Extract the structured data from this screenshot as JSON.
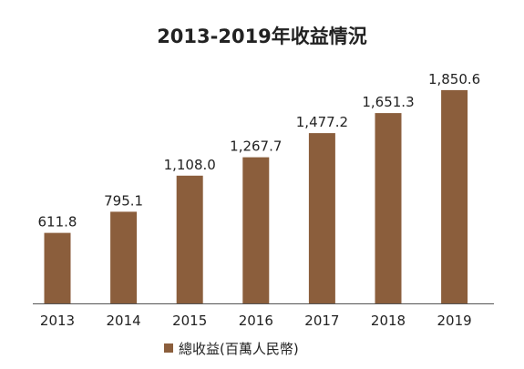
{
  "chart_data": {
    "type": "bar",
    "title": "2013-2019年收益情況",
    "categories": [
      "2013",
      "2014",
      "2015",
      "2016",
      "2017",
      "2018",
      "2019"
    ],
    "series": [
      {
        "name": "總收益(百萬人民幣)",
        "values": [
          611.8,
          795.1,
          1108.0,
          1267.7,
          1477.2,
          1651.3,
          1850.6
        ],
        "value_labels": [
          "611.8",
          "795.1",
          "1,108.0",
          "1,267.7",
          "1,477.2",
          "1,651.3",
          "1,850.6"
        ]
      }
    ],
    "xlabel": "",
    "ylabel": "",
    "ylim": [
      0,
      2000
    ],
    "grid": false,
    "legend_position": "bottom-center",
    "colors": {
      "bar": "#8b5e3c",
      "axis": "#555555",
      "text": "#222222"
    }
  }
}
